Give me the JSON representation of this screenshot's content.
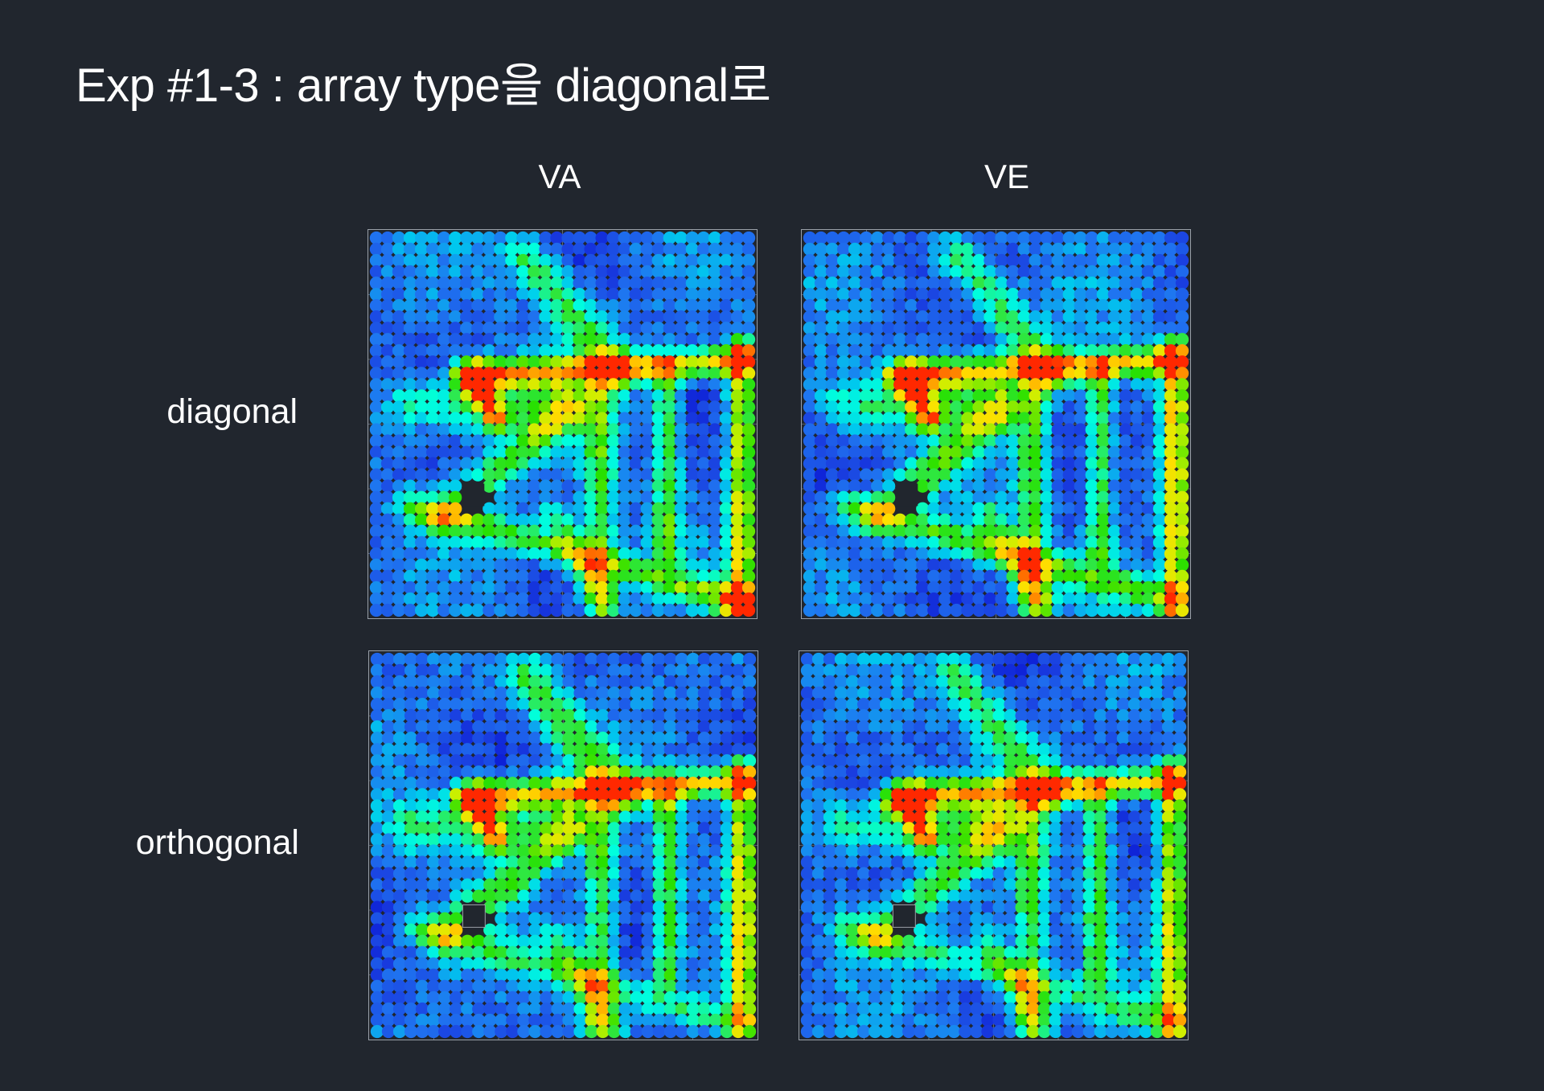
{
  "title": "Exp #1-3 : array type을 diagonal로",
  "columns": [
    "VA",
    "VE"
  ],
  "rows": [
    "diagonal",
    "orthogonal"
  ],
  "colormap": {
    "name": "jet",
    "stops": [
      "#0000cc",
      "#1a3fe0",
      "#1f74f0",
      "#00c8ee",
      "#00ffdd",
      "#2fe84a",
      "#28e000",
      "#c8f000",
      "#ffe000",
      "#ff9a00",
      "#ff2800"
    ]
  },
  "chart_data": [
    {
      "type": "heatmap",
      "row": "diagonal",
      "column": "VA",
      "array": "diagonal",
      "grid_size": 34,
      "hotspots": [
        "upper-left corridor",
        "bottom-right corner"
      ],
      "obstacle": "lower-left"
    },
    {
      "type": "heatmap",
      "row": "diagonal",
      "column": "VE",
      "array": "diagonal",
      "grid_size": 34,
      "hotspots": [
        "upper-left corridor"
      ],
      "obstacle": "lower-left"
    },
    {
      "type": "heatmap",
      "row": "orthogonal",
      "column": "VA",
      "array": "orthogonal",
      "grid_size": 34,
      "hotspots": [
        "upper-left corridor"
      ],
      "obstacle": "lower-left"
    },
    {
      "type": "heatmap",
      "row": "orthogonal",
      "column": "VE",
      "array": "orthogonal",
      "grid_size": 34,
      "hotspots": [
        "upper-left corridor"
      ],
      "obstacle": "lower-left"
    }
  ]
}
